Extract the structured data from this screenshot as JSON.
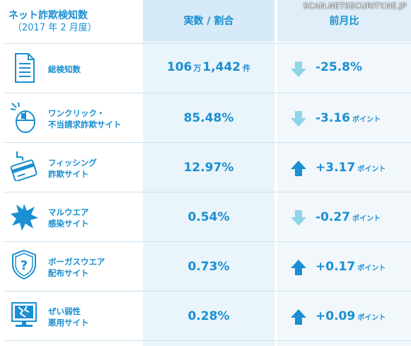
{
  "watermark": "SCAN.NETSECURITY.NE.JP",
  "header": {
    "title": "ネット詐欺検知数",
    "subtitle": "（2017 年 2 月度）",
    "col_value": "実数 / 割合",
    "col_change": "前月比"
  },
  "colors": {
    "accent": "#1a8fd1",
    "down_arrow": "#8fd4e8",
    "up_arrow": "#1a8fd1"
  },
  "rows": [
    {
      "icon": "document-icon",
      "label_line1": "総検知数",
      "label_line2": "",
      "value_main": "106",
      "value_unit1": "万",
      "value_rest": "1,442",
      "value_unit2": "件",
      "direction": "down",
      "change": "-25.8%",
      "change_unit": ""
    },
    {
      "icon": "mouse-click-icon",
      "label_line1": "ワンクリック・",
      "label_line2": "不当請求詐欺サイト",
      "value": "85.48%",
      "direction": "down",
      "change": "-3.16",
      "change_unit": "ポイント"
    },
    {
      "icon": "credit-card-hook-icon",
      "label_line1": "フィッシング",
      "label_line2": "詐欺サイト",
      "value": "12.97%",
      "direction": "up",
      "change": "+3.17",
      "change_unit": "ポイント"
    },
    {
      "icon": "malware-burst-icon",
      "label_line1": "マルウエア",
      "label_line2": "感染サイト",
      "value": "0.54%",
      "direction": "down",
      "change": "-0.27",
      "change_unit": "ポイント"
    },
    {
      "icon": "shield-question-icon",
      "label_line1": "ボーガスウエア",
      "label_line2": "配布サイト",
      "value": "0.73%",
      "direction": "up",
      "change": "+0.17",
      "change_unit": "ポイント"
    },
    {
      "icon": "broken-monitor-icon",
      "label_line1": "ぜい弱性",
      "label_line2": "悪用サイト",
      "value": "0.28%",
      "direction": "up",
      "change": "+0.09",
      "change_unit": "ポイント"
    }
  ]
}
